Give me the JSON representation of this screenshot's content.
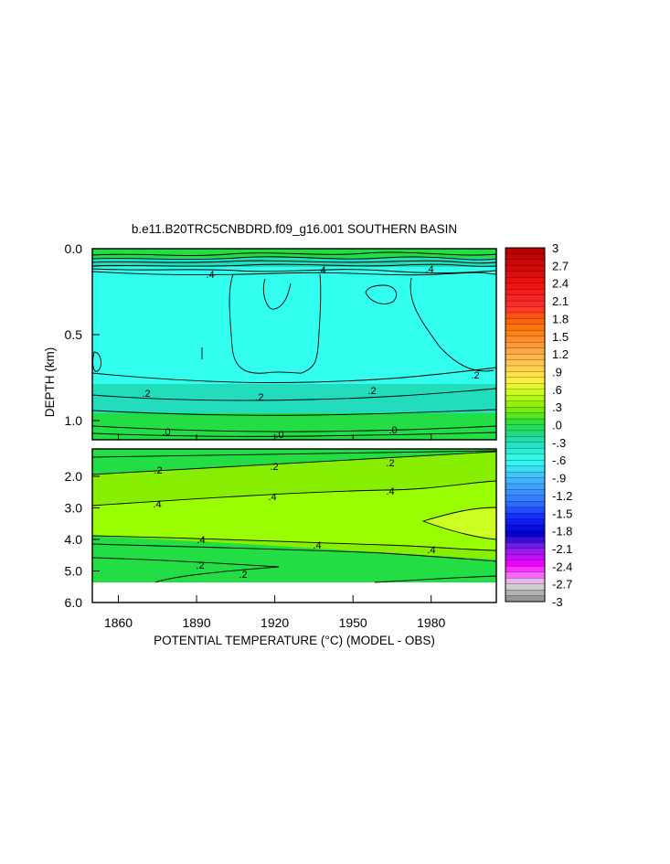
{
  "chart_data": {
    "type": "heatmap",
    "title": "b.e11.B20TRC5CNBDRD.f09_g16.001 SOUTHERN BASIN",
    "xlabel": "POTENTIAL TEMPERATURE (°C) (MODEL - OBS)",
    "ylabel": "DEPTH (km)",
    "xlim": [
      1850,
      2005
    ],
    "x_ticks": [
      "1860",
      "1890",
      "1920",
      "1950",
      "1980"
    ],
    "upper_panel": {
      "ylim": [
        0.0,
        1.13
      ],
      "y_ticks": [
        "0.0",
        "0.5",
        "1.0"
      ],
      "contour_labels": [
        ".4",
        ".4",
        ".4",
        ".2",
        ".2",
        ".2",
        ".2",
        ".0",
        ".0",
        ".0"
      ]
    },
    "lower_panel": {
      "ylim": [
        1.0,
        6.0
      ],
      "y_ticks": [
        "2.0",
        "3.0",
        "4.0",
        "5.0",
        "6.0"
      ],
      "contour_labels": [
        ".2",
        ".2",
        ".2",
        ".4",
        ".4",
        ".4",
        ".4",
        ".4",
        ".4",
        ".2",
        ".2"
      ]
    },
    "colorbar": {
      "range": [
        -3,
        3
      ],
      "tick_labels": [
        "3",
        "2.7",
        "2.4",
        "2.1",
        "1.8",
        "1.5",
        "1.2",
        ".9",
        ".6",
        ".3",
        ".0",
        "-.3",
        "-.6",
        "-.9",
        "-1.2",
        "-1.5",
        "-1.8",
        "-2.1",
        "-2.4",
        "-2.7",
        "-3"
      ],
      "stops": [
        {
          "value": 3.0,
          "color": "#b20000"
        },
        {
          "value": 2.4,
          "color": "#ee1010"
        },
        {
          "value": 2.0,
          "color": "#ff3030"
        },
        {
          "value": 1.7,
          "color": "#ff7000"
        },
        {
          "value": 1.3,
          "color": "#ffa040"
        },
        {
          "value": 1.0,
          "color": "#ffcc55"
        },
        {
          "value": 0.75,
          "color": "#ffee40"
        },
        {
          "value": 0.55,
          "color": "#ccff22"
        },
        {
          "value": 0.3,
          "color": "#88ee00"
        },
        {
          "value": 0.0,
          "color": "#22dd44"
        },
        {
          "value": -0.3,
          "color": "#22ddbb"
        },
        {
          "value": -0.6,
          "color": "#33ffee"
        },
        {
          "value": -0.9,
          "color": "#44bbff"
        },
        {
          "value": -1.3,
          "color": "#3377ff"
        },
        {
          "value": -1.6,
          "color": "#1122ff"
        },
        {
          "value": -1.85,
          "color": "#0000cc"
        },
        {
          "value": -2.1,
          "color": "#8822ee"
        },
        {
          "value": -2.35,
          "color": "#ee00ff"
        },
        {
          "value": -2.55,
          "color": "#ff66ff"
        },
        {
          "value": -2.7,
          "color": "#dddddd"
        },
        {
          "value": -3.0,
          "color": "#888888"
        }
      ]
    }
  }
}
